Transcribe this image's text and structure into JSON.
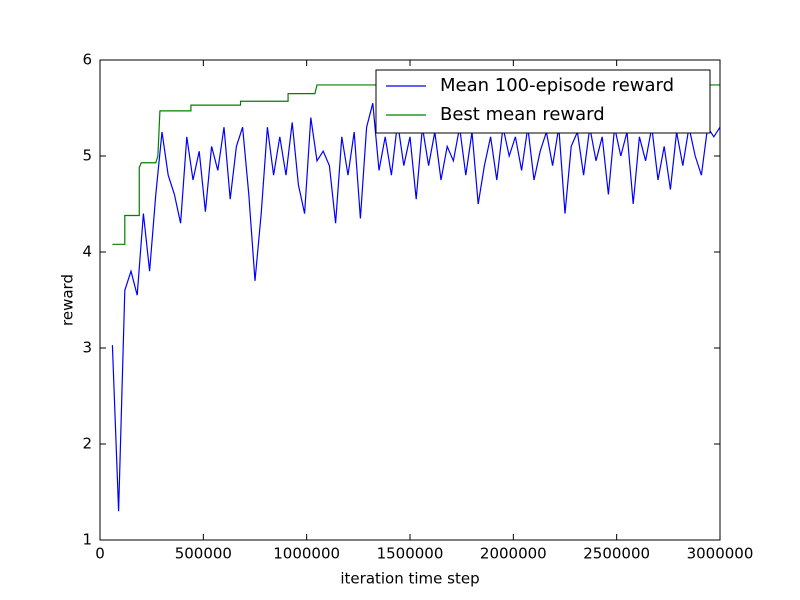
{
  "chart_data": {
    "type": "line",
    "xlabel": "iteration time step",
    "ylabel": "reward",
    "xlim": [
      0,
      3000000
    ],
    "ylim": [
      1,
      6
    ],
    "xticks": [
      0,
      500000,
      1000000,
      1500000,
      2000000,
      2500000,
      3000000
    ],
    "yticks": [
      1,
      2,
      3,
      4,
      5,
      6
    ],
    "grid": false,
    "legend": "upper right",
    "series": [
      {
        "name": "Mean 100-episode reward",
        "color": "#0000ff",
        "x": [
          60000,
          90000,
          120000,
          150000,
          180000,
          210000,
          240000,
          270000,
          300000,
          330000,
          360000,
          390000,
          420000,
          450000,
          480000,
          510000,
          540000,
          570000,
          600000,
          630000,
          660000,
          690000,
          720000,
          750000,
          780000,
          810000,
          840000,
          870000,
          900000,
          930000,
          960000,
          990000,
          1020000,
          1050000,
          1080000,
          1110000,
          1140000,
          1170000,
          1200000,
          1230000,
          1260000,
          1290000,
          1320000,
          1350000,
          1380000,
          1410000,
          1440000,
          1470000,
          1500000,
          1530000,
          1560000,
          1590000,
          1620000,
          1650000,
          1680000,
          1710000,
          1740000,
          1770000,
          1800000,
          1830000,
          1860000,
          1890000,
          1920000,
          1950000,
          1980000,
          2010000,
          2040000,
          2070000,
          2100000,
          2130000,
          2160000,
          2190000,
          2220000,
          2250000,
          2280000,
          2310000,
          2340000,
          2370000,
          2400000,
          2430000,
          2460000,
          2490000,
          2520000,
          2550000,
          2580000,
          2610000,
          2640000,
          2670000,
          2700000,
          2730000,
          2760000,
          2790000,
          2820000,
          2850000,
          2880000,
          2910000,
          2940000,
          2970000,
          3000000
        ],
        "values": [
          3.03,
          1.3,
          3.6,
          3.8,
          3.55,
          4.4,
          3.8,
          4.6,
          5.25,
          4.8,
          4.6,
          4.3,
          5.2,
          4.75,
          5.05,
          4.42,
          5.1,
          4.85,
          5.3,
          4.55,
          5.1,
          5.3,
          4.6,
          3.7,
          4.4,
          5.3,
          4.8,
          5.2,
          4.8,
          5.35,
          4.7,
          4.4,
          5.4,
          4.95,
          5.05,
          4.9,
          4.3,
          5.2,
          4.8,
          5.25,
          4.35,
          5.3,
          5.55,
          4.85,
          5.2,
          4.8,
          5.35,
          4.9,
          5.2,
          4.55,
          5.3,
          4.9,
          5.25,
          4.75,
          5.1,
          4.95,
          5.3,
          4.8,
          5.25,
          4.5,
          4.9,
          5.2,
          4.75,
          5.3,
          5.0,
          5.2,
          4.85,
          5.3,
          4.75,
          5.05,
          5.25,
          4.9,
          5.3,
          4.4,
          5.1,
          5.25,
          4.8,
          5.3,
          4.95,
          5.2,
          4.6,
          5.3,
          5.0,
          5.25,
          4.5,
          5.2,
          4.95,
          5.3,
          4.75,
          5.1,
          4.65,
          5.25,
          4.9,
          5.3,
          5.0,
          4.8,
          5.3,
          5.2,
          5.3
        ]
      },
      {
        "name": "Best mean reward",
        "color": "#008000",
        "x": [
          60000,
          120000,
          120000,
          190000,
          190000,
          200000,
          270000,
          280000,
          290000,
          440000,
          440000,
          680000,
          680000,
          910000,
          910000,
          1040000,
          1050000,
          3000000
        ],
        "values": [
          4.08,
          4.08,
          4.38,
          4.38,
          4.88,
          4.93,
          4.93,
          5.0,
          5.47,
          5.47,
          5.53,
          5.53,
          5.57,
          5.57,
          5.65,
          5.65,
          5.74,
          5.74
        ]
      }
    ]
  }
}
